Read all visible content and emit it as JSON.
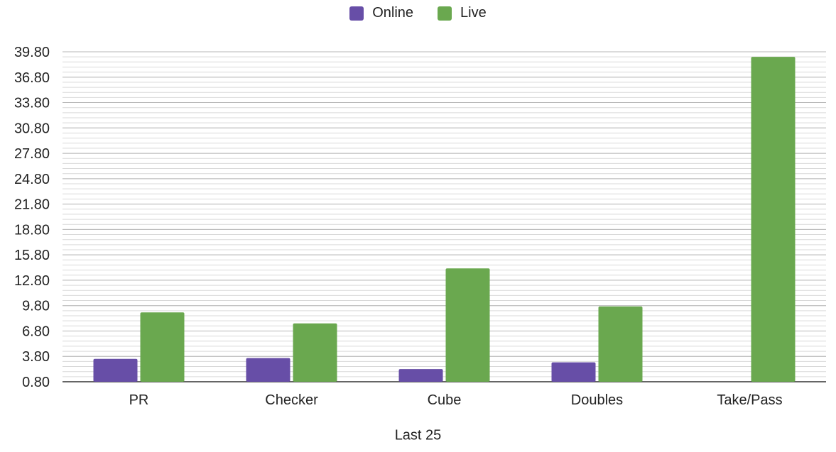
{
  "chart_data": {
    "type": "bar",
    "categories": [
      "PR",
      "Checker",
      "Cube",
      "Doubles",
      "Take/Pass"
    ],
    "series": [
      {
        "name": "Online",
        "color": "#674ea7",
        "values": [
          3.5,
          3.6,
          2.3,
          3.1,
          null
        ]
      },
      {
        "name": "Live",
        "color": "#6aa84f",
        "values": [
          9.0,
          7.7,
          14.2,
          9.7,
          39.2
        ]
      }
    ],
    "xlabel": "Last 25",
    "ylabel": "",
    "ylim": [
      0.8,
      39.8
    ],
    "yticks": [
      "0.80",
      "3.80",
      "6.80",
      "9.80",
      "12.80",
      "15.80",
      "18.80",
      "21.80",
      "24.80",
      "27.80",
      "30.80",
      "33.80",
      "36.80",
      "39.80"
    ],
    "grid": true,
    "legend": "top-center"
  }
}
